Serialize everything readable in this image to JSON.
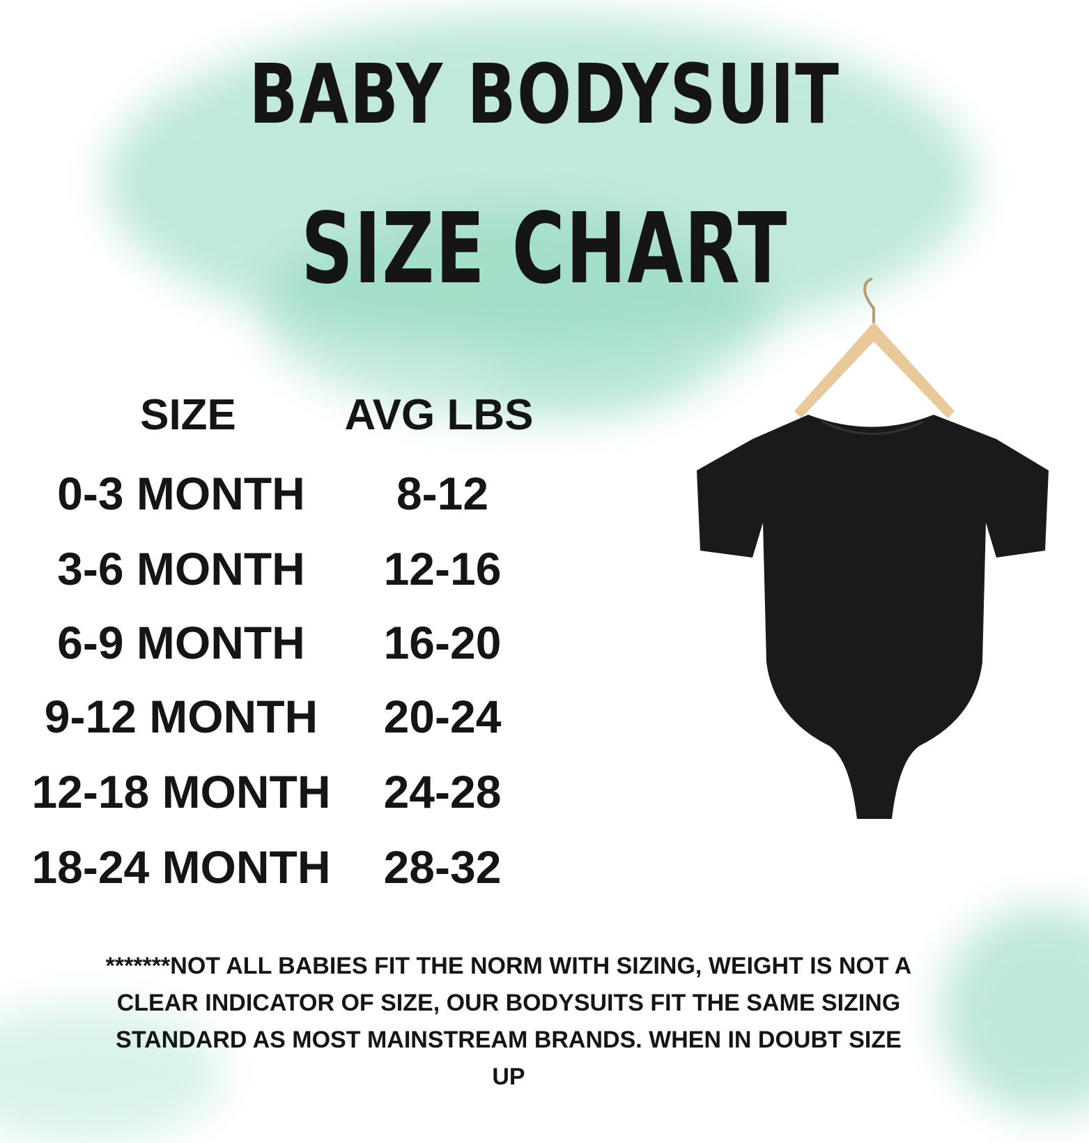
{
  "title": {
    "line1": "BABY BODYSUIT",
    "line2": "SIZE CHART"
  },
  "table": {
    "headers": [
      "SIZE",
      "AVG LBS"
    ],
    "rows": [
      {
        "size": "0-3 MONTH",
        "lbs": "8-12"
      },
      {
        "size": "3-6 MONTH",
        "lbs": "12-16"
      },
      {
        "size": "6-9 MONTH",
        "lbs": "16-20"
      },
      {
        "size": "9-12 MONTH",
        "lbs": "20-24"
      },
      {
        "size": "12-18 MONTH",
        "lbs": "24-28"
      },
      {
        "size": "18-24 MONTH",
        "lbs": "28-32"
      }
    ]
  },
  "footnote": "*******NOT ALL BABIES FIT THE NORM WITH SIZING, WEIGHT IS NOT A CLEAR INDICATOR OF SIZE, OUR BODYSUITS FIT THE SAME SIZING STANDARD AS MOST MAINSTREAM BRANDS. WHEN IN DOUBT SIZE UP",
  "colors": {
    "watercolor": "#7fd0b0",
    "text": "#151515",
    "bodysuit": "#1a1a1a",
    "hanger": "#e9c99a"
  },
  "image": {
    "icon": "black-bodysuit-on-hanger"
  }
}
